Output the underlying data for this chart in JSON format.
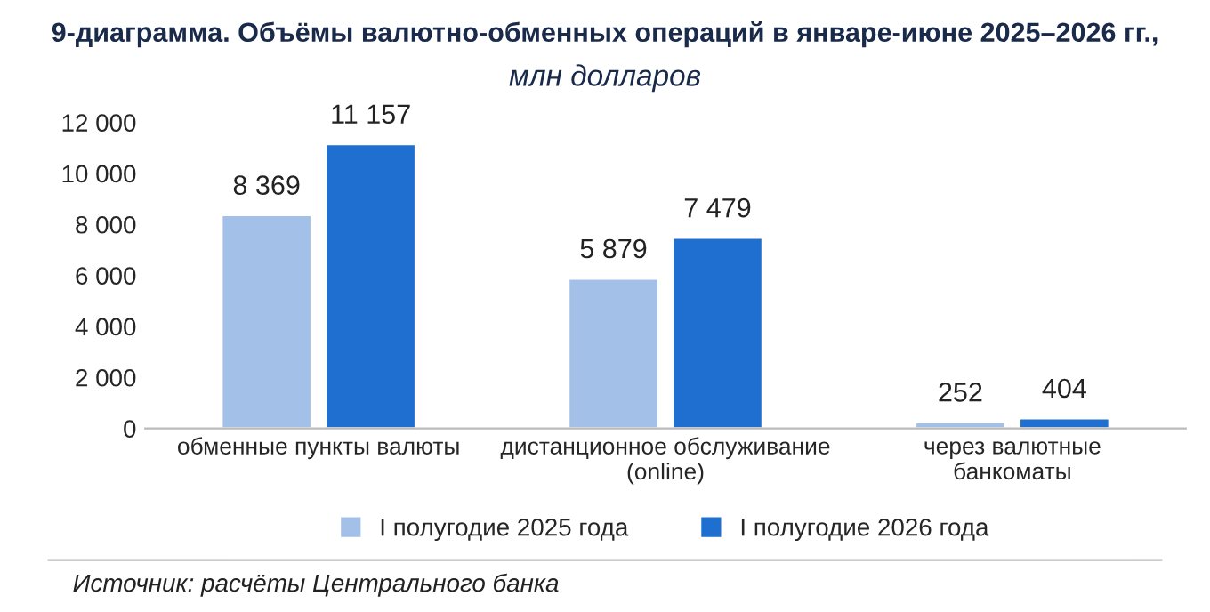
{
  "chart_data": {
    "type": "bar",
    "title": "9-диаграмма. Объёмы валютно-обменных операций в январе-июне 2025–2026 гг.,",
    "subtitle": "млн долларов",
    "categories": [
      "обменные пункты валюты",
      "дистанционное обслуживание\n(online)",
      "через валютные\nбанкоматы"
    ],
    "series": [
      {
        "name": "I полугодие 2025 года",
        "color": "#a3c1e8",
        "values": [
          8369,
          5879,
          252
        ],
        "value_labels": [
          "8 369",
          "5 879",
          "252"
        ]
      },
      {
        "name": "I полугодие 2026 года",
        "color": "#1f6fd1",
        "values": [
          11157,
          7479,
          404
        ],
        "value_labels": [
          "11 157",
          "7 479",
          "404"
        ]
      }
    ],
    "ylim": [
      0,
      12000
    ],
    "yticks": [
      0,
      {
        "value": 2000,
        "label": "2 000"
      },
      {
        "value": 4000,
        "label": "4 000"
      },
      {
        "value": 6000,
        "label": "6 000"
      },
      {
        "value": 8000,
        "label": "8 000"
      },
      {
        "value": 10000,
        "label": "10 000"
      },
      {
        "value": 12000,
        "label": "12 000"
      }
    ],
    "legend": "bottom",
    "annotations": [
      "Источник: расчёты Центрального банка"
    ]
  }
}
